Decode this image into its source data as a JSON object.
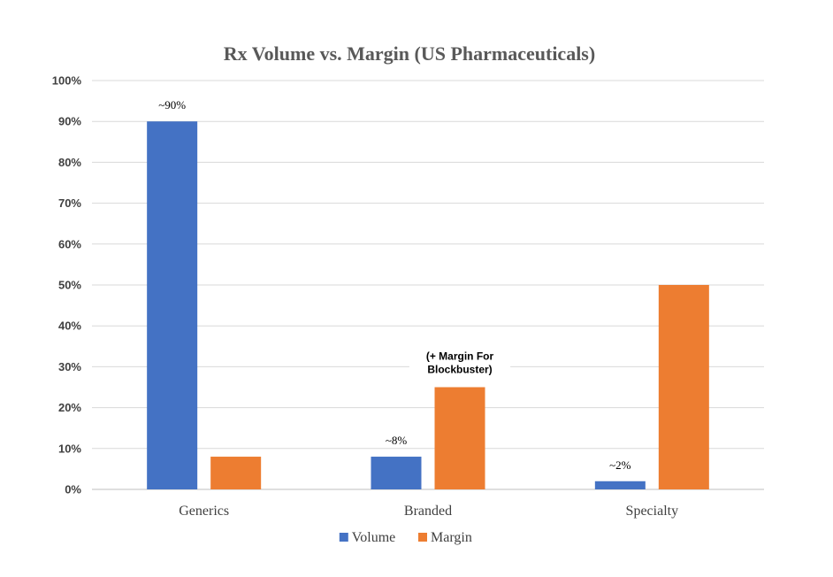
{
  "chart_data": {
    "type": "bar",
    "title": "Rx Volume vs. Margin (US Pharmaceuticals)",
    "categories": [
      "Generics",
      "Branded",
      "Specialty"
    ],
    "series": [
      {
        "name": "Volume",
        "color": "#4472c4",
        "values": [
          90,
          8,
          2
        ],
        "labels": [
          "~90%",
          "~8%",
          "~2%"
        ]
      },
      {
        "name": "Margin",
        "color": "#ed7d31",
        "values": [
          8,
          25,
          50
        ]
      }
    ],
    "annotations": [
      {
        "category": "Branded",
        "series": "Margin",
        "lines": [
          "(+ Margin For",
          "Blockbuster)"
        ]
      }
    ],
    "ylim": [
      0,
      100
    ],
    "yticks": [
      0,
      10,
      20,
      30,
      40,
      50,
      60,
      70,
      80,
      90,
      100
    ],
    "ytick_labels": [
      "0%",
      "10%",
      "20%",
      "30%",
      "40%",
      "50%",
      "60%",
      "70%",
      "80%",
      "90%",
      "100%"
    ],
    "xlabel": "",
    "ylabel": "",
    "grid": true,
    "legend": "bottom"
  }
}
